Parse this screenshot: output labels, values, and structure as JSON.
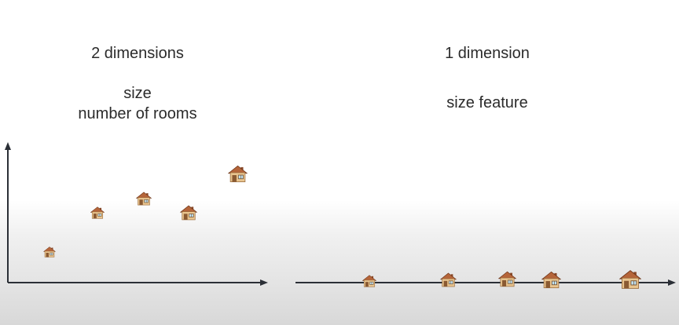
{
  "left_panel": {
    "title": "2 dimensions",
    "features": [
      "size",
      "number of rooms"
    ]
  },
  "right_panel": {
    "title": "1 dimension",
    "feature": "size feature"
  },
  "icon": "house-icon",
  "colors": {
    "axis": "#2b2f36",
    "text": "#2b2b2b",
    "roof": "#b5653a",
    "wall": "#e9c58f"
  }
}
